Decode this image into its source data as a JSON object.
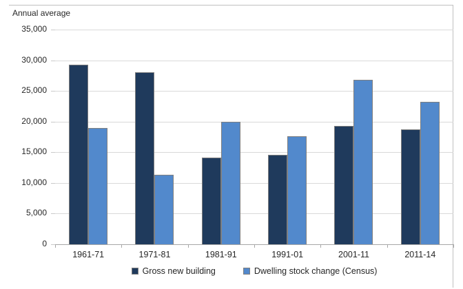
{
  "chart": {
    "title": "Annual average"
  },
  "chart_data": {
    "type": "bar",
    "title": "Annual average",
    "categories": [
      "1961-71",
      "1971-81",
      "1981-91",
      "1991-01",
      "2001-11",
      "2011-14"
    ],
    "series": [
      {
        "name": "Gross new building",
        "color": "#1f3a5c",
        "values": [
          29300,
          28000,
          14100,
          14600,
          19300,
          18700
        ]
      },
      {
        "name": "Dwelling stock change (Census)",
        "color": "#5289cc",
        "values": [
          19000,
          11300,
          20000,
          17600,
          26800,
          23200
        ]
      }
    ],
    "xlabel": "",
    "ylabel": "Annual average",
    "ylim": [
      0,
      35000
    ],
    "ytick_step": 5000,
    "ytick_labels": [
      "0",
      "5,000",
      "10,000",
      "15,000",
      "20,000",
      "25,000",
      "30,000",
      "35,000"
    ],
    "grid": true,
    "legend_position": "bottom"
  },
  "colors": {
    "gridline": "#d9d9d9",
    "axis": "#a6a6a6",
    "frame_border": "#bfbfbf",
    "text": "#262626",
    "bar_border": "#7f7f7f",
    "background": "#ffffff"
  }
}
